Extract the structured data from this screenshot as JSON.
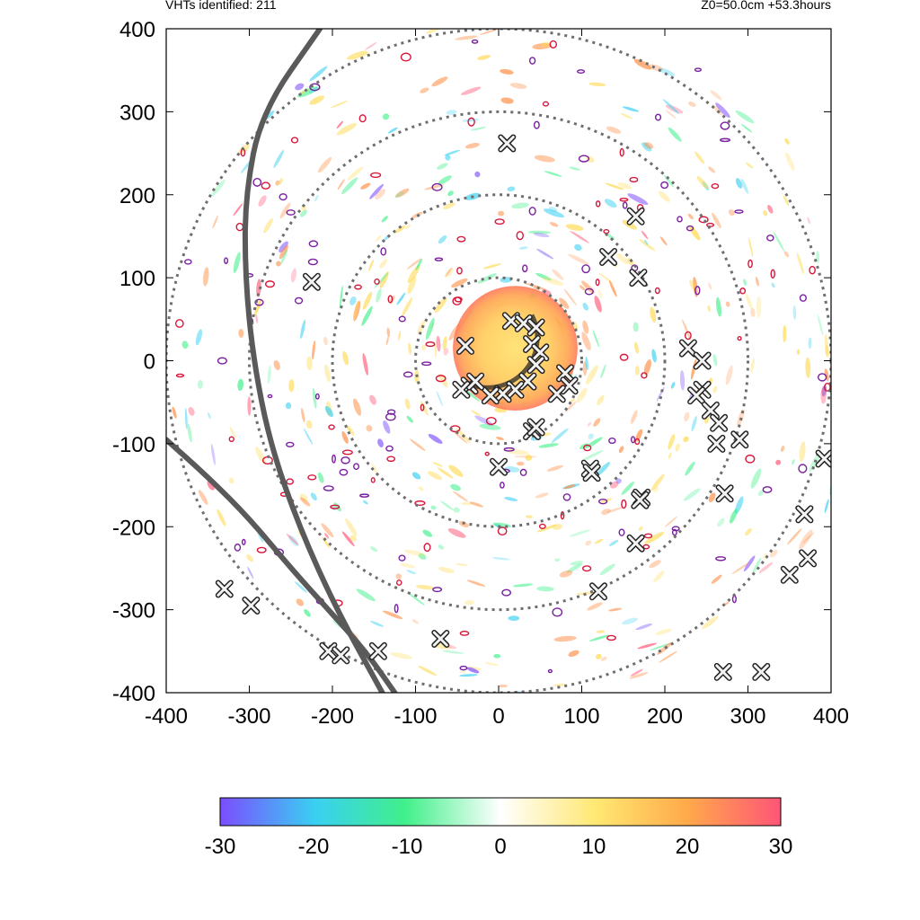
{
  "header": {
    "left": "VHTs identified: 211",
    "right": "Z0=50.0cm  +53.3hours"
  },
  "chart_data": {
    "type": "heatmap",
    "title": "",
    "xlabel": "",
    "ylabel": "",
    "xlim": [
      -400,
      400
    ],
    "ylim": [
      -400,
      400
    ],
    "x_ticks": [
      "-400",
      "-300",
      "-200",
      "-100",
      "0",
      "100",
      "200",
      "300",
      "400"
    ],
    "y_ticks": [
      "400",
      "300",
      "200",
      "100",
      "0",
      "-100",
      "-200",
      "-300",
      "-400"
    ],
    "grid": false,
    "range_rings": [
      100,
      200,
      300,
      400
    ],
    "colorbar": {
      "range": [
        -30,
        30
      ],
      "ticks": [
        "-30",
        "-20",
        "-10",
        "0",
        "10",
        "20",
        "30"
      ],
      "colors": [
        "#7b4dff",
        "#39d0f2",
        "#40f08a",
        "#ffffff",
        "#ffd84a",
        "#ff8c42",
        "#ff5577"
      ]
    },
    "vortex_core": {
      "center": [
        20,
        15
      ],
      "radius": 75,
      "value": 15
    },
    "vht_markers": [
      [
        10,
        262
      ],
      [
        165,
        174
      ],
      [
        132,
        125
      ],
      [
        168,
        100
      ],
      [
        -225,
        95
      ],
      [
        -40,
        18
      ],
      [
        15,
        48
      ],
      [
        30,
        45
      ],
      [
        45,
        40
      ],
      [
        40,
        20
      ],
      [
        50,
        10
      ],
      [
        45,
        -5
      ],
      [
        35,
        -25
      ],
      [
        20,
        -35
      ],
      [
        5,
        -40
      ],
      [
        -10,
        -42
      ],
      [
        -35,
        -30
      ],
      [
        -45,
        -35
      ],
      [
        -28,
        -25
      ],
      [
        80,
        -15
      ],
      [
        85,
        -30
      ],
      [
        70,
        -40
      ],
      [
        40,
        -85
      ],
      [
        45,
        -80
      ],
      [
        0,
        -128
      ],
      [
        110,
        -130
      ],
      [
        112,
        -135
      ],
      [
        228,
        15
      ],
      [
        245,
        0
      ],
      [
        245,
        -35
      ],
      [
        238,
        -42
      ],
      [
        255,
        -60
      ],
      [
        265,
        -75
      ],
      [
        262,
        -100
      ],
      [
        290,
        -95
      ],
      [
        272,
        -160
      ],
      [
        172,
        -165
      ],
      [
        170,
        -168
      ],
      [
        165,
        -220
      ],
      [
        120,
        -278
      ],
      [
        392,
        -118
      ],
      [
        368,
        -185
      ],
      [
        372,
        -238
      ],
      [
        350,
        -258
      ],
      [
        -330,
        -275
      ],
      [
        -298,
        -295
      ],
      [
        -205,
        -350
      ],
      [
        -190,
        -355
      ],
      [
        -145,
        -350
      ],
      [
        -70,
        -335
      ],
      [
        270,
        -375
      ],
      [
        316,
        -375
      ]
    ],
    "track_lines": [
      {
        "name": "",
        "points": [
          [
            -215,
            400
          ],
          [
            -285,
            300
          ],
          [
            -305,
            200
          ],
          [
            -305,
            100
          ],
          [
            -295,
            0
          ],
          [
            -275,
            -100
          ],
          [
            -240,
            -200
          ],
          [
            -195,
            -300
          ],
          [
            -140,
            -400
          ]
        ]
      },
      {
        "name": "",
        "points": [
          [
            -400,
            -95
          ],
          [
            -350,
            -140
          ],
          [
            -300,
            -190
          ],
          [
            -250,
            -250
          ],
          [
            -205,
            -300
          ],
          [
            -160,
            -350
          ],
          [
            -125,
            -400
          ]
        ]
      }
    ]
  }
}
